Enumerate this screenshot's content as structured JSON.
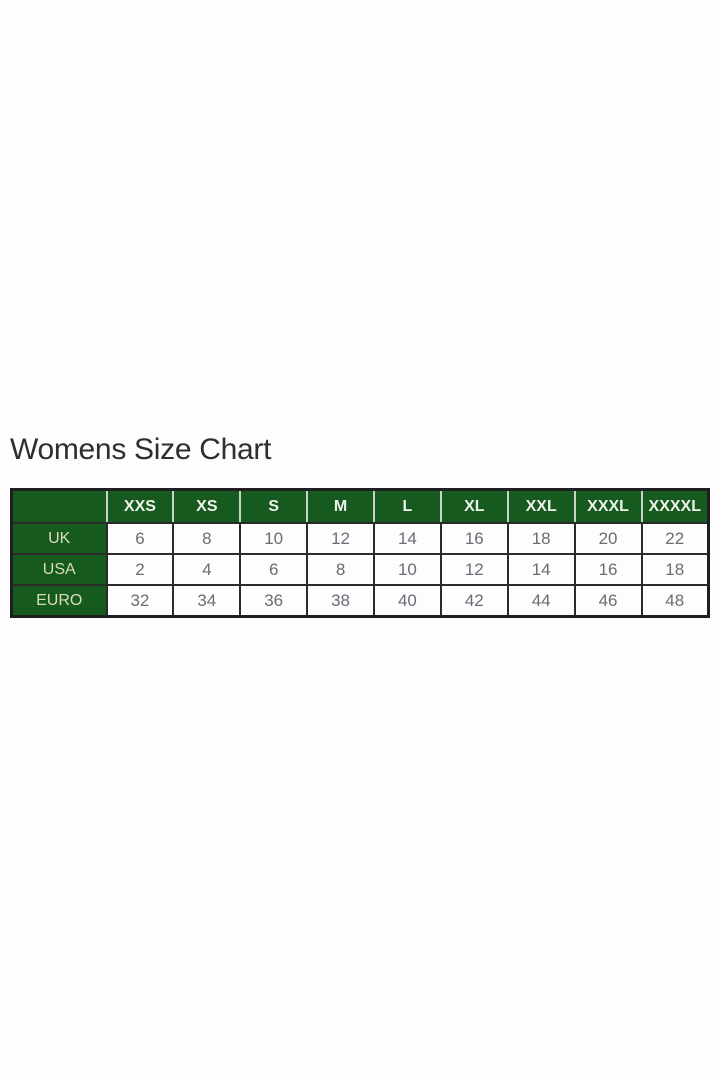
{
  "title": "Womens Size Chart",
  "colors": {
    "header_bg": "#175a20",
    "header_text": "#eef2ea",
    "row_label_text": "#d9ddb9",
    "cell_text": "#6b6c76",
    "border_dark": "#2b2b2b",
    "header_divider": "#c9d2c9",
    "page_bg": "#fdfdfd",
    "title_color": "#2e2e2e"
  },
  "chart_data": {
    "type": "table",
    "title": "Womens Size Chart",
    "columns": [
      "",
      "XXS",
      "XS",
      "S",
      "M",
      "L",
      "XL",
      "XXL",
      "XXXL",
      "XXXXL"
    ],
    "rows": [
      [
        "UK",
        "6",
        "8",
        "10",
        "12",
        "14",
        "16",
        "18",
        "20",
        "22"
      ],
      [
        "USA",
        "2",
        "4",
        "6",
        "8",
        "10",
        "12",
        "14",
        "16",
        "18"
      ],
      [
        "EURO",
        "32",
        "34",
        "36",
        "38",
        "40",
        "42",
        "44",
        "46",
        "48"
      ]
    ]
  }
}
